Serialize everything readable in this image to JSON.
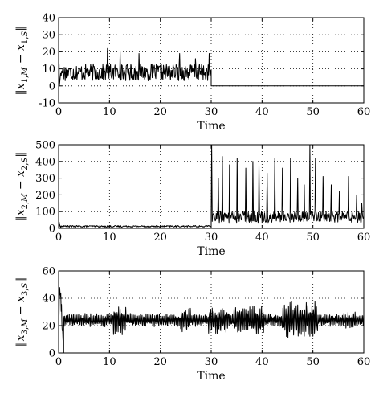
{
  "chart_data": [
    {
      "type": "line",
      "xlabel": "Time",
      "ylabel": "||x1,M − x1,S||",
      "ylabel_parts": {
        "open": "‖",
        "var": "x",
        "sub1": "1,",
        "sub2": "M",
        "mid": " − ",
        "var2": "x",
        "sub3": "1,",
        "sub4": "S",
        "close": "‖"
      },
      "xlim": [
        0,
        60
      ],
      "ylim": [
        -10,
        40
      ],
      "xticks": [
        "0",
        "10",
        "20",
        "30",
        "40",
        "50",
        "60"
      ],
      "yticks": [
        "-10",
        "0",
        "10",
        "20",
        "30",
        "40"
      ],
      "grid": true,
      "series": [
        {
          "segments": [
            {
              "x0": 0,
              "x1": 0.15,
              "kind": "spike",
              "peak": 30
            },
            {
              "x0": 0.4,
              "x1": 30,
              "kind": "noise",
              "mean": 8,
              "amp": 5,
              "spikes": [
                [
                  9.6,
                  22
                ],
                [
                  12.1,
                  20
                ],
                [
                  15.8,
                  19
                ],
                [
                  23.8,
                  19
                ],
                [
                  26.9,
                  16
                ],
                [
                  29.6,
                  19
                ]
              ]
            },
            {
              "x0": 30,
              "x1": 60,
              "kind": "flat",
              "value": 0
            }
          ]
        }
      ]
    },
    {
      "type": "line",
      "xlabel": "Time",
      "ylabel": "||x2,M − x2,S||",
      "ylabel_parts": {
        "open": "‖",
        "var": "x",
        "sub1": "2,",
        "sub2": "M",
        "mid": " − ",
        "var2": "x",
        "sub3": "2,",
        "sub4": "S",
        "close": "‖"
      },
      "xlim": [
        0,
        60
      ],
      "ylim": [
        0,
        500
      ],
      "xticks": [
        "0",
        "10",
        "20",
        "30",
        "40",
        "50",
        "60"
      ],
      "yticks": [
        "0",
        "100",
        "200",
        "300",
        "400",
        "500"
      ],
      "grid": true,
      "series": [
        {
          "segments": [
            {
              "x0": 0,
              "x1": 0.4,
              "kind": "spike",
              "peak": 40
            },
            {
              "x0": 0.4,
              "x1": 30,
              "kind": "noise",
              "mean": 12,
              "amp": 5,
              "spikes": []
            },
            {
              "x0": 30,
              "x1": 60,
              "kind": "burst",
              "mean": 70,
              "amp": 35,
              "spikes": [
                [
                  30.1,
                  500
                ],
                [
                  31.4,
                  300
                ],
                [
                  32.2,
                  430
                ],
                [
                  33.6,
                  380
                ],
                [
                  35.1,
                  420
                ],
                [
                  36.8,
                  360
                ],
                [
                  38.2,
                  400
                ],
                [
                  39.4,
                  380
                ],
                [
                  41.0,
                  330
                ],
                [
                  42.5,
                  420
                ],
                [
                  44.0,
                  360
                ],
                [
                  45.6,
                  420
                ],
                [
                  47.0,
                  300
                ],
                [
                  48.3,
                  260
                ],
                [
                  49.4,
                  500
                ],
                [
                  50.5,
                  420
                ],
                [
                  52.0,
                  310
                ],
                [
                  53.6,
                  260
                ],
                [
                  55.2,
                  220
                ],
                [
                  57.0,
                  310
                ],
                [
                  58.6,
                  200
                ],
                [
                  59.6,
                  150
                ]
              ]
            }
          ]
        }
      ]
    },
    {
      "type": "line",
      "xlabel": "Time",
      "ylabel": "||x3,M − x3,S||",
      "ylabel_parts": {
        "open": "‖",
        "var": "x",
        "sub1": "3,",
        "sub2": "M",
        "mid": " − ",
        "var2": "x",
        "sub3": "3,",
        "sub4": "S",
        "close": "‖"
      },
      "xlim": [
        0,
        60
      ],
      "ylim": [
        0,
        60
      ],
      "xticks": [
        "0",
        "10",
        "20",
        "30",
        "40",
        "50",
        "60"
      ],
      "yticks": [
        "0",
        "20",
        "40",
        "60"
      ],
      "grid": true,
      "series": [
        {
          "segments": [
            {
              "x0": 0,
              "x1": 1.0,
              "kind": "spike",
              "peak": 60
            },
            {
              "x0": 1.0,
              "x1": 60,
              "kind": "osc",
              "mean": 24,
              "amp": 5,
              "bursts": [
                [
                  10.5,
                  13.2,
                  11
                ],
                [
                  24.0,
                  26.0,
                  9
                ],
                [
                  29.5,
                  33.5,
                  10
                ],
                [
                  34.5,
                  40.5,
                  11
                ],
                [
                  44.0,
                  51.0,
                  14
                ],
                [
                  56.0,
                  58.5,
                  7
                ]
              ]
            }
          ]
        }
      ]
    }
  ]
}
